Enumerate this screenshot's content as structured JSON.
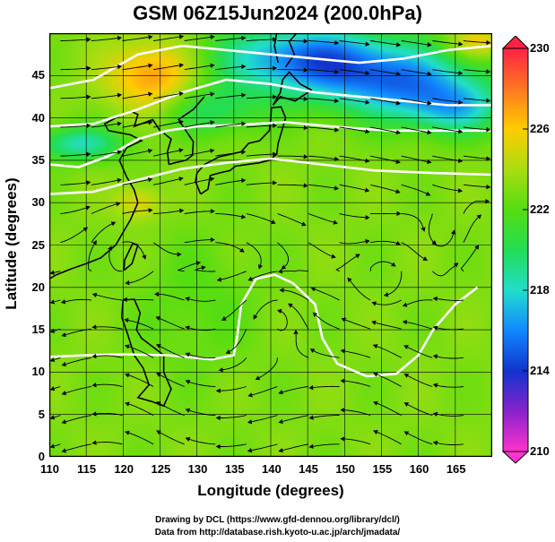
{
  "title": "GSM 06Z15Jun2024 (200.0hPa)",
  "xlabel": "Longitude (degrees)",
  "ylabel": "Latitude  (degrees)",
  "x_ticks": [
    "110",
    "115",
    "120",
    "125",
    "130",
    "135",
    "140",
    "145",
    "150",
    "155",
    "160",
    "165"
  ],
  "y_ticks": [
    "0",
    "5",
    "10",
    "15",
    "20",
    "25",
    "30",
    "35",
    "40",
    "45"
  ],
  "colorbar": {
    "min": 210,
    "max": 230,
    "labels": [
      "230",
      "226",
      "222",
      "218",
      "214",
      "210"
    ],
    "colors": [
      "#ff33cc",
      "#8822cc",
      "#1133cc",
      "#1188ff",
      "#22ddcc",
      "#22dd55",
      "#55dd11",
      "#aadd11",
      "#ffcc00",
      "#ff7722",
      "#ff2244"
    ]
  },
  "credit": {
    "line1": "Drawing by DCL (https://www.gfd-dennou.org/library/dcl/)",
    "line2": "Data from http://database.rish.kyoto-u.ac.jp/arch/jmadata/"
  },
  "chart_data": {
    "type": "heatmap",
    "variable": "200hPa field with streamlines",
    "xlim": [
      110,
      170
    ],
    "ylim": [
      0,
      50
    ],
    "vlim": [
      210,
      230
    ],
    "grid": true
  }
}
